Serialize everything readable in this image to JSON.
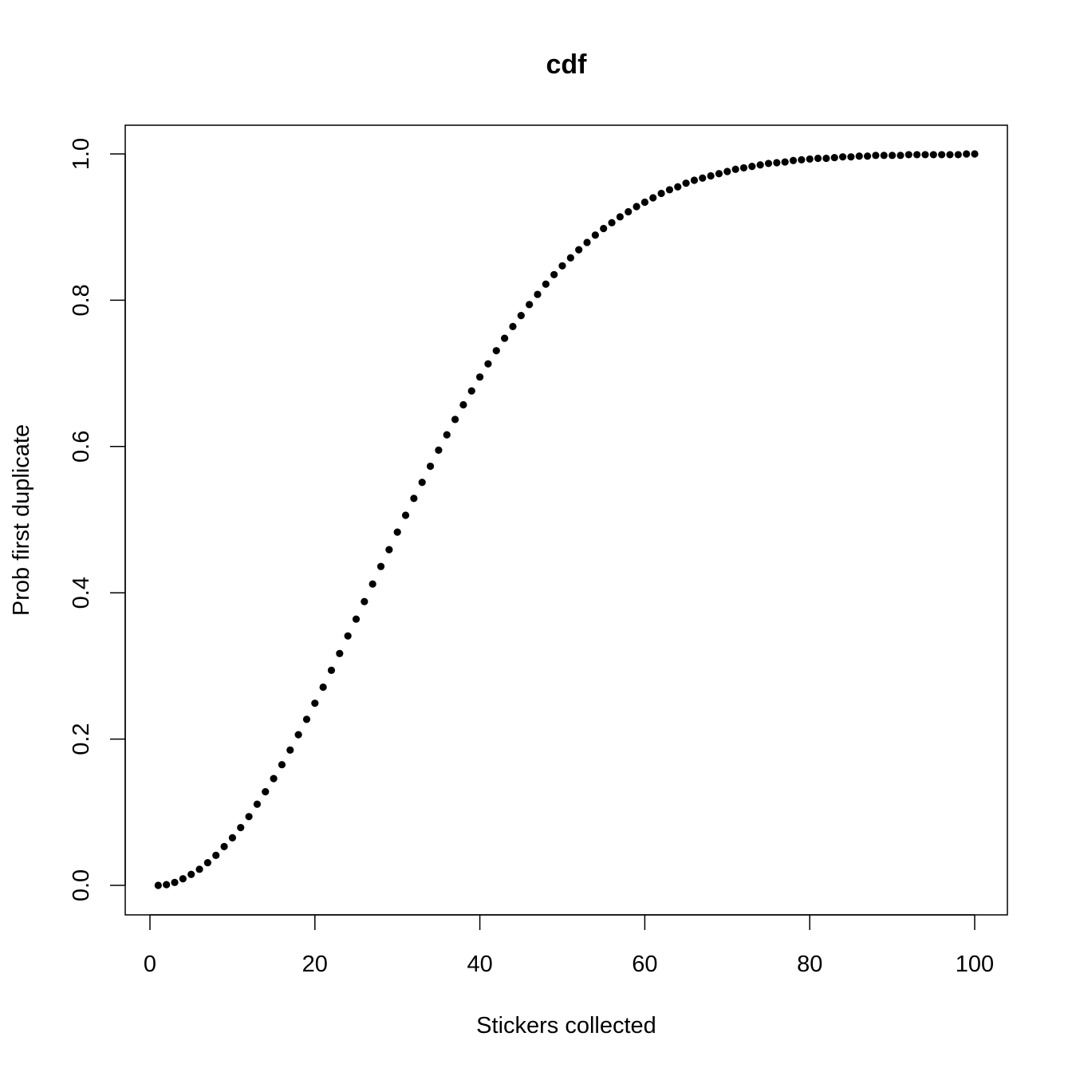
{
  "chart_data": {
    "type": "scatter",
    "title": "cdf",
    "xlabel": "Stickers collected",
    "ylabel": "Prob first duplicate",
    "xlim": [
      0,
      100
    ],
    "ylim": [
      0,
      1
    ],
    "x_ticks": [
      "0",
      "20",
      "40",
      "60",
      "80",
      "100"
    ],
    "y_ticks": [
      "0.0",
      "0.2",
      "0.4",
      "0.6",
      "0.8",
      "1.0"
    ],
    "grid": false,
    "legend": "none",
    "point_color": "#000000",
    "series": [
      {
        "x": [
          1,
          2,
          3,
          4,
          5,
          6,
          7,
          8,
          9,
          10,
          11,
          12,
          13,
          14,
          15,
          16,
          17,
          18,
          19,
          20,
          21,
          22,
          23,
          24,
          25,
          26,
          27,
          28,
          29,
          30,
          31,
          32,
          33,
          34,
          35,
          36,
          37,
          38,
          39,
          40,
          41,
          42,
          43,
          44,
          45,
          46,
          47,
          48,
          49,
          50,
          51,
          52,
          53,
          54,
          55,
          56,
          57,
          58,
          59,
          60,
          61,
          62,
          63,
          64,
          65,
          66,
          67,
          68,
          69,
          70,
          71,
          72,
          73,
          74,
          75,
          76,
          77,
          78,
          79,
          80,
          81,
          82,
          83,
          84,
          85,
          86,
          87,
          88,
          89,
          90,
          91,
          92,
          93,
          94,
          95,
          96,
          97,
          98,
          99,
          100
        ],
        "y": [
          0.0,
          0.001,
          0.004,
          0.009,
          0.015,
          0.022,
          0.031,
          0.041,
          0.053,
          0.065,
          0.079,
          0.094,
          0.111,
          0.128,
          0.146,
          0.165,
          0.185,
          0.206,
          0.227,
          0.249,
          0.271,
          0.294,
          0.317,
          0.341,
          0.364,
          0.388,
          0.412,
          0.436,
          0.459,
          0.483,
          0.506,
          0.529,
          0.551,
          0.573,
          0.595,
          0.616,
          0.637,
          0.657,
          0.676,
          0.695,
          0.713,
          0.731,
          0.748,
          0.764,
          0.779,
          0.794,
          0.808,
          0.822,
          0.835,
          0.847,
          0.858,
          0.869,
          0.879,
          0.889,
          0.898,
          0.906,
          0.914,
          0.921,
          0.928,
          0.934,
          0.94,
          0.946,
          0.951,
          0.955,
          0.96,
          0.964,
          0.967,
          0.97,
          0.973,
          0.976,
          0.979,
          0.981,
          0.983,
          0.985,
          0.987,
          0.988,
          0.989,
          0.991,
          0.992,
          0.993,
          0.994,
          0.994,
          0.995,
          0.996,
          0.996,
          0.997,
          0.997,
          0.998,
          0.998,
          0.998,
          0.998,
          0.999,
          0.999,
          0.999,
          0.999,
          0.999,
          0.999,
          0.999,
          1.0,
          1.0
        ]
      }
    ]
  }
}
